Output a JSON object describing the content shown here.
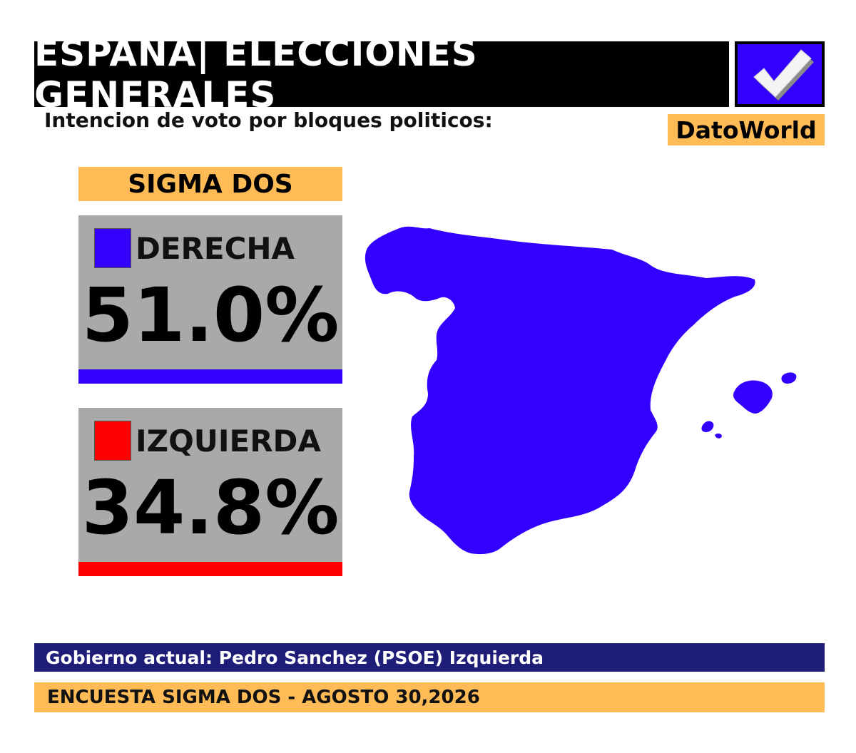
{
  "header": {
    "title": "ESPAÑA| ELECCIONES GENERALES",
    "subtitle": "Intencion de voto por bloques politicos:",
    "brand": "DatoWorld",
    "check_icon": "checkmark-icon"
  },
  "pollster": "SIGMA DOS",
  "blocs": [
    {
      "name": "DERECHA",
      "value": "51.0%",
      "color": "#3300ff"
    },
    {
      "name": "IZQUIERDA",
      "value": "34.8%",
      "color": "#ff0000"
    }
  ],
  "map": {
    "icon": "spain-map-icon",
    "color": "#3300ff"
  },
  "footer": {
    "government": "Gobierno actual: Pedro Sanchez (PSOE) Izquierda",
    "source": "ENCUESTA SIGMA DOS - AGOSTO 30,2026"
  }
}
